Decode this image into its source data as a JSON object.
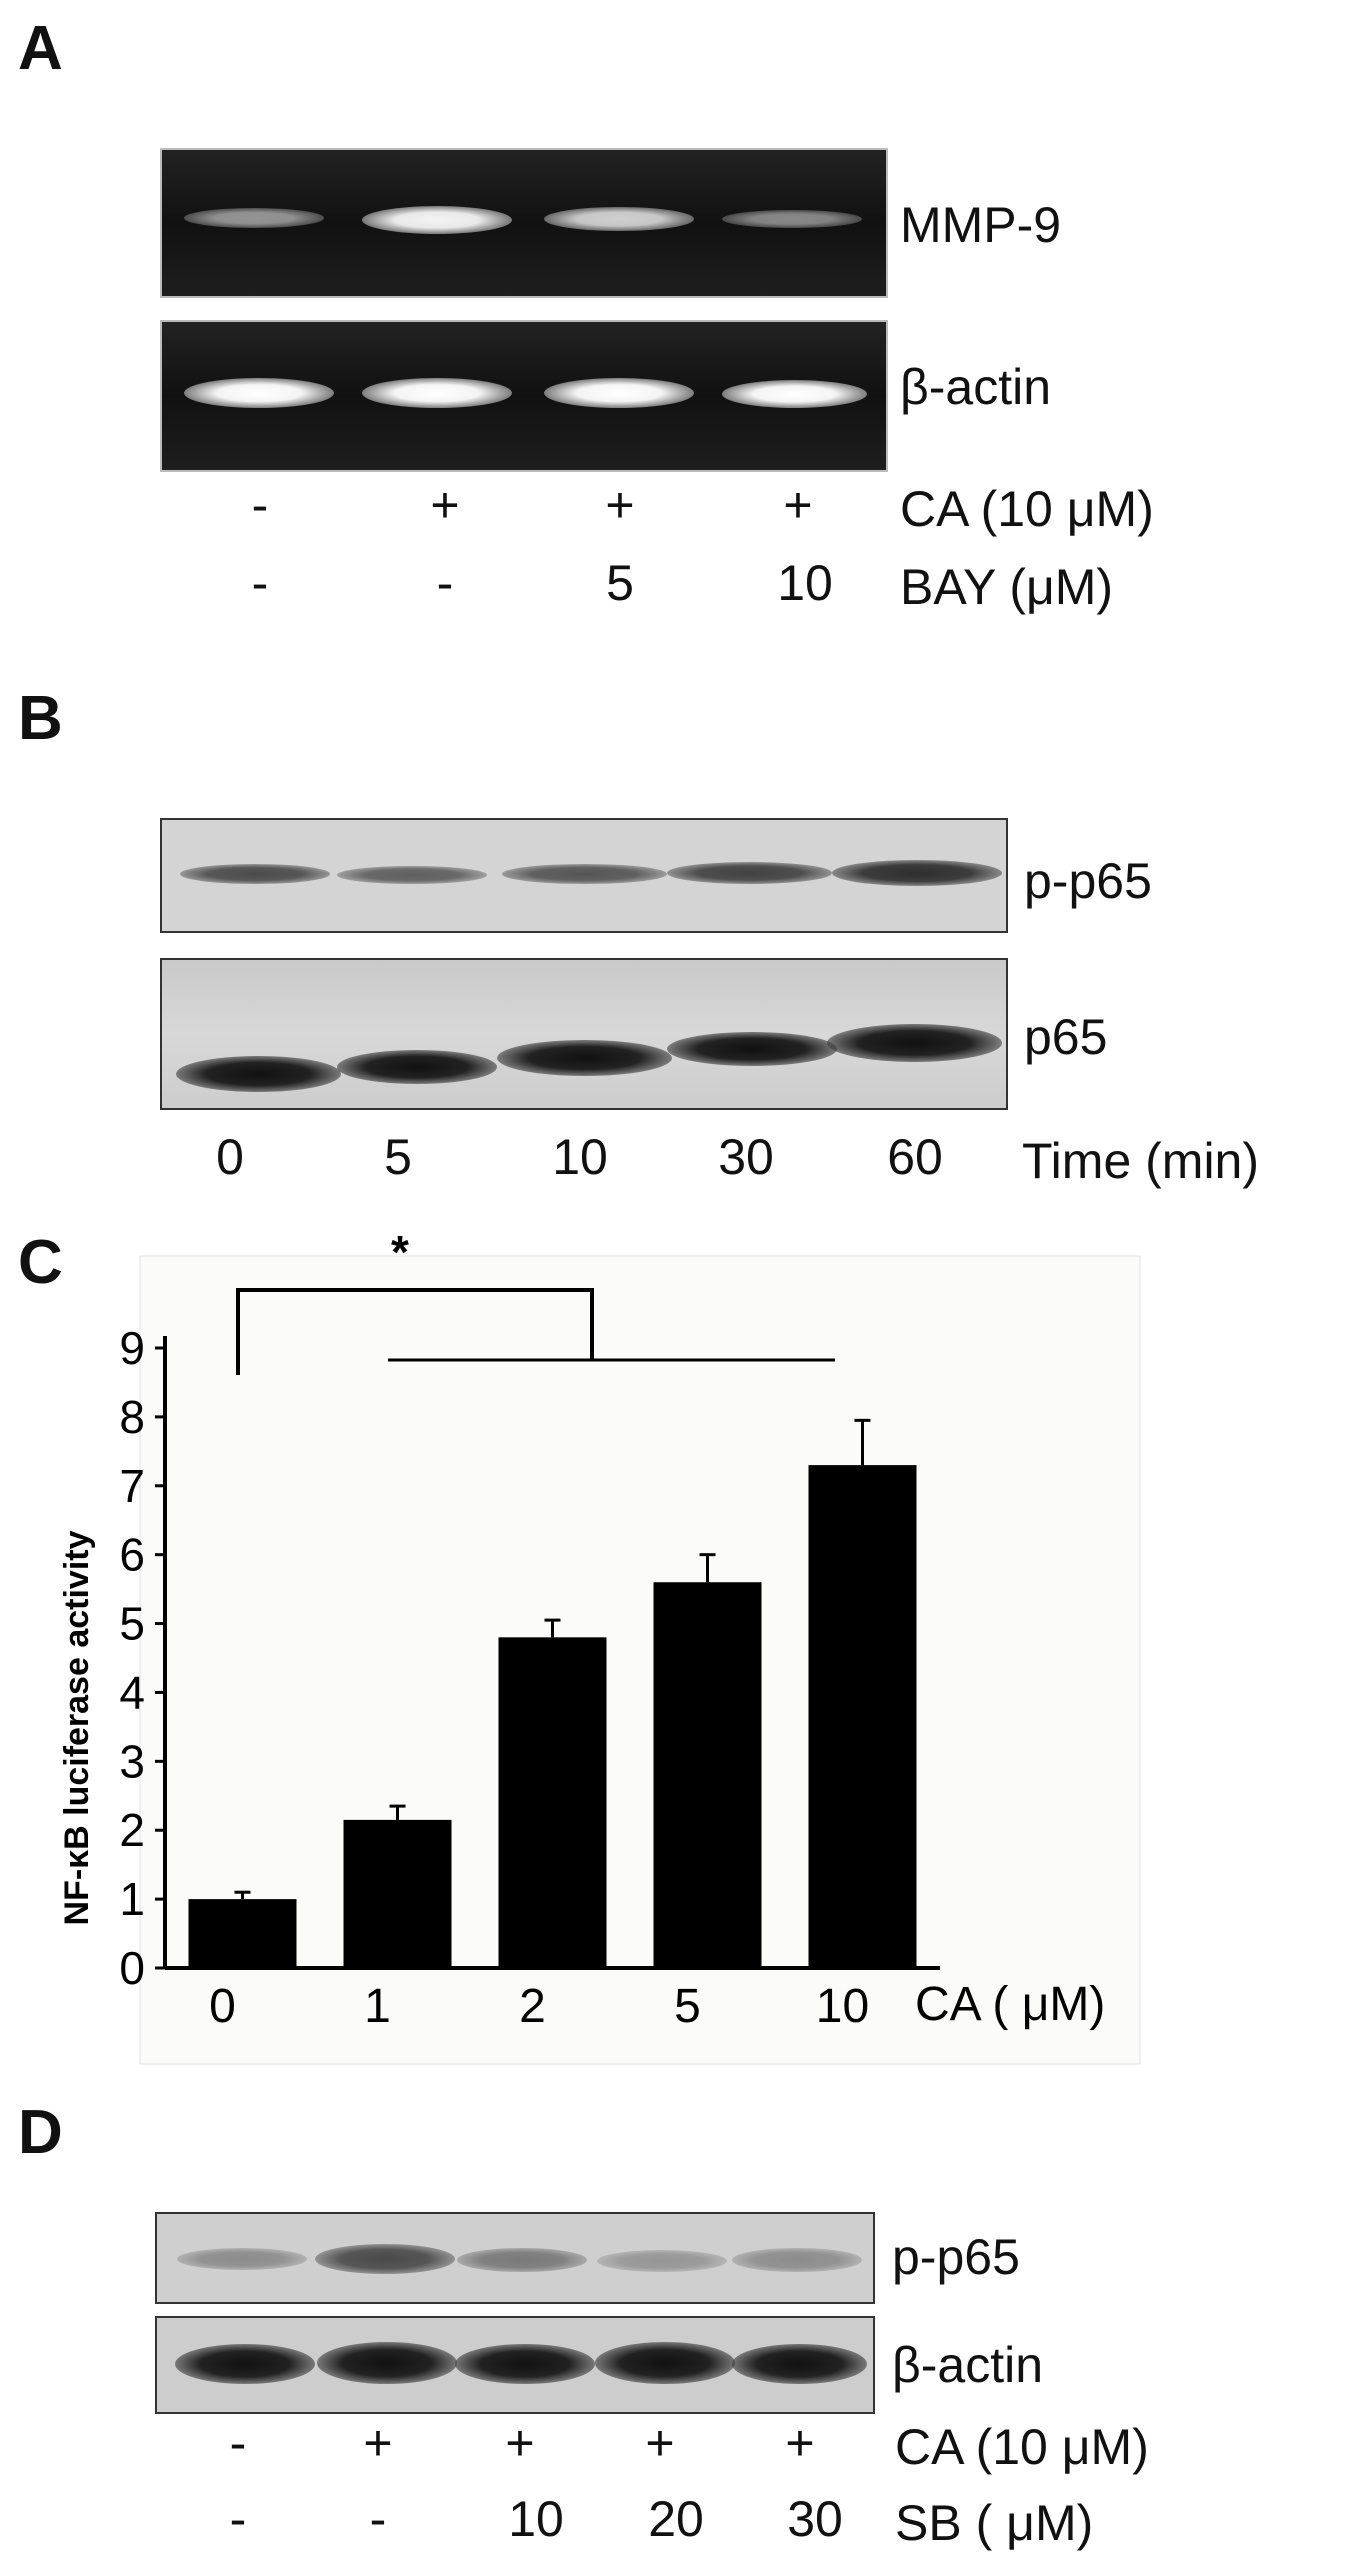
{
  "panels": {
    "a": {
      "letter": "A",
      "rows": [
        "MMP-9",
        "β-actin"
      ],
      "treatment_rows": [
        {
          "label": "CA (10 μM)",
          "values": [
            "-",
            "+",
            "+",
            "+"
          ]
        },
        {
          "label": "BAY (μM)",
          "values": [
            "-",
            "-",
            "5",
            "10"
          ]
        }
      ]
    },
    "b": {
      "letter": "B",
      "rows": [
        "p-p65",
        "p65"
      ],
      "time_row": {
        "label": "Time (min)",
        "values": [
          "0",
          "5",
          "10",
          "30",
          "60"
        ]
      }
    },
    "c": {
      "letter": "C",
      "significance": "*"
    },
    "d": {
      "letter": "D",
      "rows": [
        "p-p65",
        "β-actin"
      ],
      "treatment_rows": [
        {
          "label": "CA (10 μM)",
          "values": [
            "-",
            "+",
            "+",
            "+",
            "+"
          ]
        },
        {
          "label": "SB ( μM)",
          "values": [
            "-",
            "-",
            "10",
            "20",
            "30"
          ]
        }
      ]
    }
  },
  "chart_data": {
    "type": "bar",
    "categories": [
      "0",
      "1",
      "2",
      "5",
      "10"
    ],
    "values": [
      1.0,
      2.15,
      4.8,
      5.6,
      7.3
    ],
    "errors": [
      0.1,
      0.2,
      0.25,
      0.4,
      0.65
    ],
    "ylabel": "NF-κB luciferase activity",
    "xlabel": "CA ( μM)",
    "yticks": [
      "0",
      "1",
      "2",
      "3",
      "4",
      "5",
      "6",
      "7",
      "8",
      "9"
    ],
    "ylim": [
      0,
      9
    ],
    "bar_color": "#000000",
    "grid": false
  }
}
